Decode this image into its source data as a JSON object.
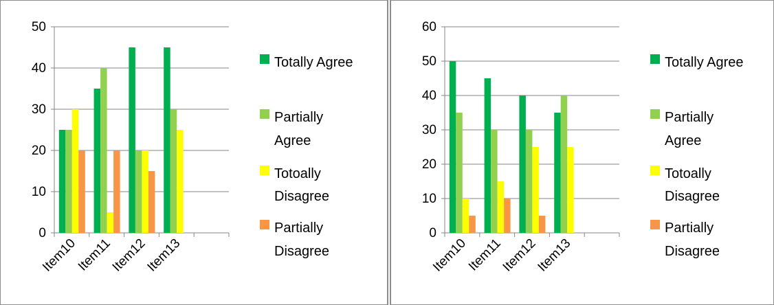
{
  "chart_data": [
    {
      "type": "bar",
      "title": "",
      "xlabel": "",
      "ylabel": "",
      "ylim": [
        0,
        50
      ],
      "yticks": [
        0,
        10,
        20,
        30,
        40,
        50
      ],
      "grid": true,
      "legend_position": "right",
      "categories": [
        "Item10",
        "Item11",
        "Item12",
        "Item13",
        ""
      ],
      "series": [
        {
          "name": "Totally Agree",
          "color": "#00b050",
          "values": [
            25,
            35,
            45,
            45,
            null
          ]
        },
        {
          "name": "Partially Agree",
          "color": "#92d050",
          "values": [
            25,
            40,
            20,
            30,
            null
          ]
        },
        {
          "name": "Totoally Disagree",
          "color": "#ffff00",
          "values": [
            30,
            5,
            20,
            25,
            null
          ]
        },
        {
          "name": "Partially Disagree",
          "color": "#f79646",
          "values": [
            20,
            20,
            15,
            null,
            null
          ]
        }
      ]
    },
    {
      "type": "bar",
      "title": "",
      "xlabel": "",
      "ylabel": "",
      "ylim": [
        0,
        60
      ],
      "yticks": [
        0,
        10,
        20,
        30,
        40,
        50,
        60
      ],
      "grid": true,
      "legend_position": "right",
      "categories": [
        "Item10",
        "Item11",
        "Item12",
        "Item13",
        ""
      ],
      "series": [
        {
          "name": "Totally Agree",
          "color": "#00b050",
          "values": [
            50,
            45,
            40,
            35,
            null
          ]
        },
        {
          "name": "Partially Agree",
          "color": "#92d050",
          "values": [
            35,
            30,
            30,
            40,
            null
          ]
        },
        {
          "name": "Totoally Disagree",
          "color": "#ffff00",
          "values": [
            10,
            15,
            25,
            25,
            null
          ]
        },
        {
          "name": "Partially Disagree",
          "color": "#f79646",
          "values": [
            5,
            10,
            5,
            null,
            null
          ]
        }
      ]
    }
  ]
}
